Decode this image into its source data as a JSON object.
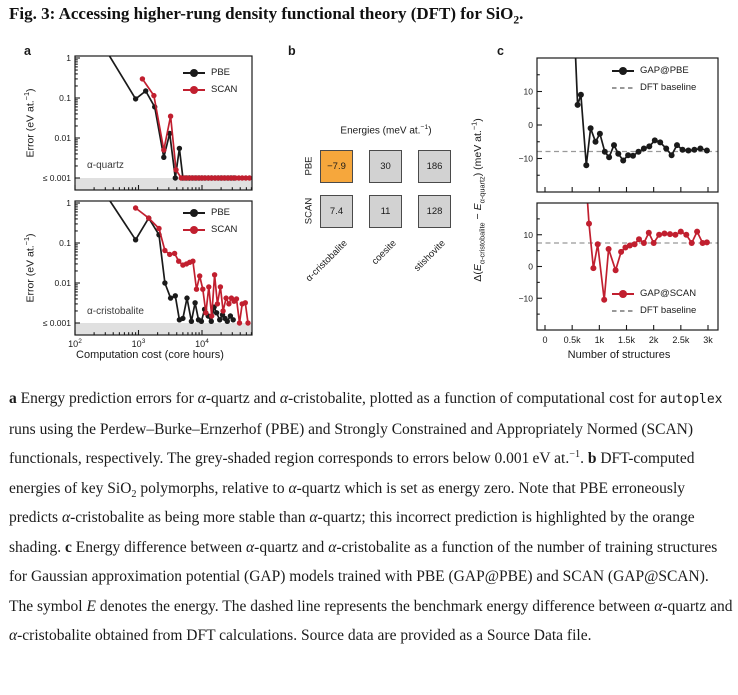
{
  "title": {
    "parts": [
      {
        "t": "Fig. 3: Accessing higher-rung density functional theory (DFT) for SiO"
      },
      {
        "t": "2",
        "sub": true
      },
      {
        "t": "."
      }
    ]
  },
  "colors": {
    "pbe": "#1a1a1a",
    "scan": "#c11f2f",
    "baseline": "#999999",
    "band": "#e0e0e0",
    "cell_grey": "#d2d2d2",
    "cell_orange": "#f6a73c",
    "cell_border": "#4a4a4a"
  },
  "panels": {
    "a": {
      "label": "a",
      "ylabel_parts": [
        {
          "t": "Error (eV at."
        },
        {
          "t": "−1",
          "sup": true
        },
        {
          "t": ")"
        }
      ],
      "xlabel": "Computation cost (core hours)",
      "legend": {
        "pbe": "PBE",
        "scan": "SCAN"
      }
    },
    "b": {
      "label": "b",
      "title_parts": [
        {
          "t": "Energies (meV at."
        },
        {
          "t": "−1",
          "sup": true
        },
        {
          "t": ")"
        }
      ],
      "row_labels": [
        "PBE",
        "SCAN"
      ],
      "col_labels": [
        "α-cristobalite",
        "coesite",
        "stishovite"
      ],
      "rows": [
        {
          "cells": [
            {
              "value": "−7.9",
              "highlight": true
            },
            {
              "value": "30"
            },
            {
              "value": "186"
            }
          ]
        },
        {
          "cells": [
            {
              "value": "7.4"
            },
            {
              "value": "11"
            },
            {
              "value": "128"
            }
          ]
        }
      ]
    },
    "c": {
      "label": "c",
      "ylabel_parts": [
        {
          "t": "Δ("
        },
        {
          "t": "E",
          "i": true
        },
        {
          "t": "α-cristobalite",
          "sub": true
        },
        {
          "t": " − "
        },
        {
          "t": "E",
          "i": true
        },
        {
          "t": "α-quartz",
          "sub": true
        },
        {
          "t": ") (meV at."
        },
        {
          "t": "−1",
          "sup": true
        },
        {
          "t": ")"
        }
      ],
      "xlabel": "Number of structures",
      "legend": {
        "gap_pbe": "GAP@PBE",
        "gap_scan": "GAP@SCAN",
        "baseline": "DFT baseline"
      }
    }
  },
  "chart_data": [
    {
      "id": "quartz-errors",
      "type": "line",
      "xscale": "log",
      "yscale": "log",
      "xlim": [
        100,
        61000
      ],
      "ylim": [
        0.00047,
        1
      ],
      "tick_xlim": [
        100,
        61000
      ],
      "tick_ylim": [
        0.001,
        1
      ],
      "band_below": 0.001,
      "annotation": "α-quartz",
      "y_ticks": [
        {
          "v": 1,
          "l": "1"
        },
        {
          "v": 0.1,
          "l": "0.1"
        },
        {
          "v": 0.01,
          "l": "0.01"
        },
        {
          "v": 0.001,
          "l": "≤ 0.001"
        }
      ],
      "series": [
        {
          "name": "PBE",
          "color_key": "pbe",
          "points": [
            [
              280,
              2
            ],
            [
              900,
              0.095
            ],
            [
              1300,
              0.15
            ],
            [
              1800,
              0.06
            ],
            [
              2500,
              0.0033
            ],
            [
              3100,
              0.013
            ],
            [
              3800,
              0.001
            ],
            [
              4400,
              0.0055
            ],
            [
              5000,
              0.001
            ],
            [
              5600,
              0.001
            ],
            [
              6300,
              0.001
            ],
            [
              7100,
              0.001
            ],
            [
              8000,
              0.001
            ],
            [
              9000,
              0.001
            ],
            [
              10000,
              0.001
            ],
            [
              11200,
              0.001
            ],
            [
              12600,
              0.001
            ],
            [
              14200,
              0.001
            ],
            [
              16000,
              0.001
            ],
            [
              18000,
              0.001
            ],
            [
              20000,
              0.001
            ],
            [
              22500,
              0.001
            ],
            [
              25500,
              0.001
            ],
            [
              28500,
              0.001
            ],
            [
              32000,
              0.001
            ]
          ]
        },
        {
          "name": "SCAN",
          "color_key": "scan",
          "points": [
            [
              1150,
              0.3
            ],
            [
              1750,
              0.115
            ],
            [
              2500,
              0.005
            ],
            [
              3200,
              0.035
            ],
            [
              3900,
              0.0016
            ],
            [
              4700,
              0.001
            ],
            [
              5300,
              0.001
            ],
            [
              6000,
              0.001
            ],
            [
              6800,
              0.001
            ],
            [
              7700,
              0.001
            ],
            [
              8700,
              0.001
            ],
            [
              9800,
              0.001
            ],
            [
              11000,
              0.001
            ],
            [
              12500,
              0.001
            ],
            [
              14000,
              0.001
            ],
            [
              16000,
              0.001
            ],
            [
              18000,
              0.001
            ],
            [
              20500,
              0.001
            ],
            [
              23000,
              0.001
            ],
            [
              26000,
              0.001
            ],
            [
              29500,
              0.001
            ],
            [
              33500,
              0.001
            ],
            [
              38000,
              0.001
            ],
            [
              43000,
              0.001
            ],
            [
              49000,
              0.001
            ],
            [
              56000,
              0.001
            ]
          ]
        }
      ]
    },
    {
      "id": "cristobalite-errors",
      "type": "line",
      "xscale": "log",
      "yscale": "log",
      "xlim": [
        100,
        61000
      ],
      "ylim": [
        0.00047,
        1
      ],
      "tick_xlim": [
        100,
        61000
      ],
      "tick_ylim": [
        0.001,
        1
      ],
      "band_below": 0.001,
      "annotation": "α-cristobalite",
      "y_ticks": [
        {
          "v": 1,
          "l": "1"
        },
        {
          "v": 0.1,
          "l": "0.1"
        },
        {
          "v": 0.01,
          "l": "0.01"
        },
        {
          "v": 0.001,
          "l": "≤ 0.001"
        }
      ],
      "x_tick_labels": [
        {
          "v": 100,
          "base": "10",
          "exp": "2"
        },
        {
          "v": 1000,
          "base": "10",
          "exp": "3"
        },
        {
          "v": 10000,
          "base": "10",
          "exp": "4"
        }
      ],
      "series": [
        {
          "name": "PBE",
          "color_key": "pbe",
          "points": [
            [
              280,
              2
            ],
            [
              900,
              0.12
            ],
            [
              1450,
              0.42
            ],
            [
              2100,
              0.16
            ],
            [
              2600,
              0.01
            ],
            [
              3200,
              0.0042
            ],
            [
              3800,
              0.0048
            ],
            [
              4400,
              0.0012
            ],
            [
              5000,
              0.0013
            ],
            [
              5800,
              0.0042
            ],
            [
              6800,
              0.0011
            ],
            [
              7800,
              0.0032
            ],
            [
              8800,
              0.0012
            ],
            [
              9800,
              0.0011
            ],
            [
              11000,
              0.0022
            ],
            [
              12500,
              0.0015
            ],
            [
              14000,
              0.0011
            ],
            [
              15500,
              0.0025
            ],
            [
              17000,
              0.0018
            ],
            [
              19000,
              0.0012
            ],
            [
              21000,
              0.0016
            ],
            [
              23000,
              0.0013
            ],
            [
              25000,
              0.0011
            ],
            [
              28000,
              0.0015
            ],
            [
              31000,
              0.0012
            ]
          ]
        },
        {
          "name": "SCAN",
          "color_key": "scan",
          "points": [
            [
              900,
              0.75
            ],
            [
              1450,
              0.42
            ],
            [
              2100,
              0.23
            ],
            [
              2600,
              0.065
            ],
            [
              3100,
              0.052
            ],
            [
              3700,
              0.055
            ],
            [
              4300,
              0.035
            ],
            [
              5000,
              0.028
            ],
            [
              5700,
              0.03
            ],
            [
              6400,
              0.033
            ],
            [
              7200,
              0.035
            ],
            [
              8200,
              0.007
            ],
            [
              9200,
              0.015
            ],
            [
              10300,
              0.007
            ],
            [
              11500,
              0.0018
            ],
            [
              12800,
              0.008
            ],
            [
              14200,
              0.0015
            ],
            [
              15800,
              0.016
            ],
            [
              17500,
              0.003
            ],
            [
              19500,
              0.008
            ],
            [
              21500,
              0.002
            ],
            [
              24000,
              0.0042
            ],
            [
              26500,
              0.003
            ],
            [
              29000,
              0.0042
            ],
            [
              32000,
              0.0035
            ],
            [
              35000,
              0.004
            ],
            [
              39000,
              0.001
            ],
            [
              43000,
              0.003
            ],
            [
              48000,
              0.0032
            ],
            [
              53000,
              0.001
            ]
          ]
        }
      ]
    },
    {
      "id": "gap-pbe",
      "type": "line",
      "xscale": "linear",
      "yscale": "linear",
      "xlim": [
        -150,
        3180
      ],
      "ylim": [
        -20,
        20
      ],
      "baseline": -7.9,
      "x_tick_values": [
        0,
        500,
        1000,
        1500,
        2000,
        2500,
        3000
      ],
      "y_ticks": [
        {
          "v": 10,
          "l": "10"
        },
        {
          "v": 0,
          "l": "0"
        },
        {
          "v": -10,
          "l": "−10"
        }
      ],
      "y_minor": [
        -15,
        -5,
        5,
        15
      ],
      "series": [
        {
          "name": "GAP@PBE",
          "color_key": "pbe",
          "points": [
            [
              550,
              25
            ],
            [
              600,
              6
            ],
            [
              660,
              9
            ],
            [
              760,
              -12
            ],
            [
              840,
              -1
            ],
            [
              930,
              -5
            ],
            [
              1010,
              -2.6
            ],
            [
              1100,
              -8
            ],
            [
              1180,
              -9.6
            ],
            [
              1270,
              -6
            ],
            [
              1350,
              -8.6
            ],
            [
              1440,
              -10.6
            ],
            [
              1530,
              -9
            ],
            [
              1620,
              -9.2
            ],
            [
              1720,
              -8
            ],
            [
              1820,
              -7
            ],
            [
              1920,
              -6.4
            ],
            [
              2020,
              -4.6
            ],
            [
              2120,
              -5.2
            ],
            [
              2230,
              -7
            ],
            [
              2330,
              -9
            ],
            [
              2430,
              -6
            ],
            [
              2530,
              -7.4
            ],
            [
              2640,
              -7.6
            ],
            [
              2750,
              -7.4
            ],
            [
              2860,
              -7
            ],
            [
              2980,
              -7.6
            ]
          ]
        }
      ]
    },
    {
      "id": "gap-scan",
      "type": "line",
      "xscale": "linear",
      "yscale": "linear",
      "xlim": [
        -150,
        3180
      ],
      "ylim": [
        -20,
        20
      ],
      "baseline": 7.4,
      "x_tick_values": [
        0,
        500,
        1000,
        1500,
        2000,
        2500,
        3000
      ],
      "x_tick_labels": [
        {
          "v": 0,
          "l": "0"
        },
        {
          "v": 500,
          "l": "0.5k"
        },
        {
          "v": 1000,
          "l": "1k"
        },
        {
          "v": 1500,
          "l": "1.5k"
        },
        {
          "v": 2000,
          "l": "2k"
        },
        {
          "v": 2500,
          "l": "2.5k"
        },
        {
          "v": 3000,
          "l": "3k"
        }
      ],
      "y_ticks": [
        {
          "v": 10,
          "l": "10"
        },
        {
          "v": 0,
          "l": "0"
        },
        {
          "v": -10,
          "l": "−10"
        }
      ],
      "y_minor": [
        -15,
        -5,
        5,
        15
      ],
      "series": [
        {
          "name": "GAP@SCAN",
          "color_key": "scan",
          "points": [
            [
              760,
              26
            ],
            [
              810,
              13.5
            ],
            [
              890,
              -0.5
            ],
            [
              970,
              7
            ],
            [
              1090,
              -10.5
            ],
            [
              1170,
              5.5
            ],
            [
              1300,
              -1.2
            ],
            [
              1400,
              4.6
            ],
            [
              1480,
              6
            ],
            [
              1560,
              6.6
            ],
            [
              1650,
              7
            ],
            [
              1730,
              8.6
            ],
            [
              1820,
              7.4
            ],
            [
              1910,
              10.6
            ],
            [
              2000,
              7.4
            ],
            [
              2100,
              10
            ],
            [
              2200,
              10.4
            ],
            [
              2300,
              10.2
            ],
            [
              2400,
              10
            ],
            [
              2500,
              11
            ],
            [
              2600,
              10
            ],
            [
              2700,
              7.4
            ],
            [
              2800,
              11
            ],
            [
              2900,
              7.4
            ],
            [
              2980,
              7.6
            ]
          ]
        }
      ]
    }
  ],
  "caption": {
    "segments": [
      {
        "t": "a",
        "b": true
      },
      {
        "t": " Energy prediction errors for "
      },
      {
        "t": "α",
        "i": true
      },
      {
        "t": "-quartz and "
      },
      {
        "t": "α",
        "i": true
      },
      {
        "t": "-cristobalite, plotted as a function of computational cost for "
      },
      {
        "t": "autoplex",
        "mono": true
      },
      {
        "t": " runs using the Perdew–Burke–Ernzerhof (PBE) and Strongly Constrained and Appropriately Normed (SCAN) functionals, respectively. The grey-shaded region corresponds to errors below 0.001 eV at."
      },
      {
        "t": "−1",
        "sup": true
      },
      {
        "t": ". "
      },
      {
        "t": "b",
        "b": true
      },
      {
        "t": " DFT-computed energies of key SiO"
      },
      {
        "t": "2",
        "sub": true
      },
      {
        "t": " polymorphs, relative to "
      },
      {
        "t": "α",
        "i": true
      },
      {
        "t": "-quartz which is set as energy zero. Note that PBE erroneously predicts "
      },
      {
        "t": "α",
        "i": true
      },
      {
        "t": "-cristobalite as being more stable than "
      },
      {
        "t": "α",
        "i": true
      },
      {
        "t": "-quartz; this incorrect prediction is highlighted by the orange shading. "
      },
      {
        "t": "c",
        "b": true
      },
      {
        "t": " Energy difference between "
      },
      {
        "t": "α",
        "i": true
      },
      {
        "t": "-quartz and "
      },
      {
        "t": "α",
        "i": true
      },
      {
        "t": "-cristobalite as a function of the number of training structures for Gaussian approximation potential (GAP) models trained with PBE (GAP@PBE) and SCAN (GAP@SCAN). The symbol "
      },
      {
        "t": "E",
        "i": true
      },
      {
        "t": " denotes the energy. The dashed line represents the benchmark energy difference between "
      },
      {
        "t": "α",
        "i": true
      },
      {
        "t": "-quartz and "
      },
      {
        "t": "α",
        "i": true
      },
      {
        "t": "-cristobalite obtained from DFT calculations. Source data are provided as a Source Data file."
      }
    ]
  }
}
